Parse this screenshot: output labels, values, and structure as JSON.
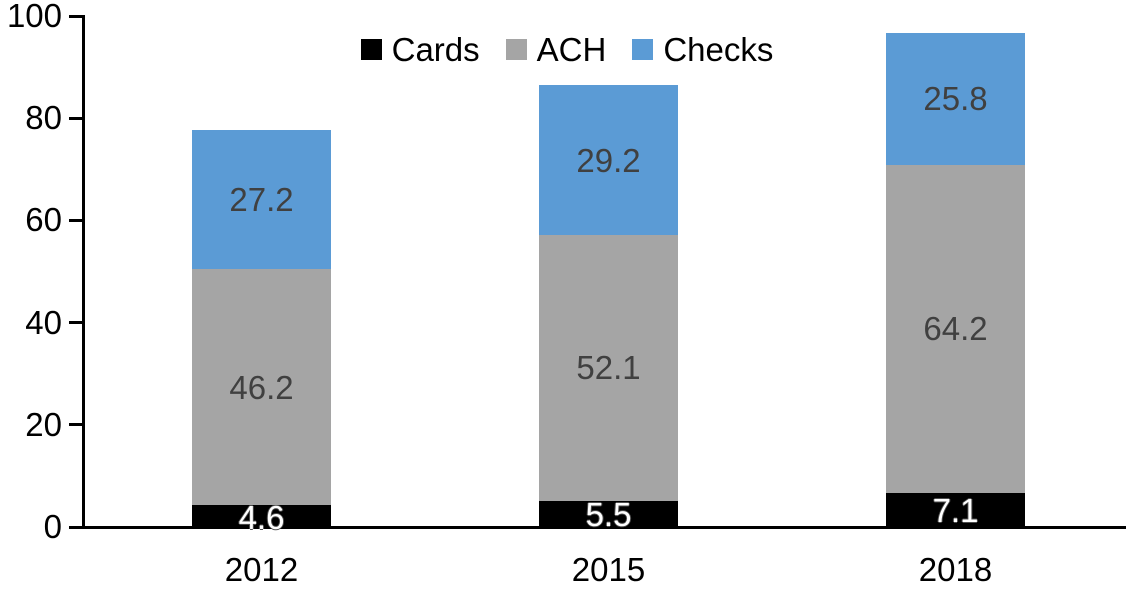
{
  "chart_data": {
    "type": "bar",
    "stacked": true,
    "title": "",
    "xlabel": "",
    "ylabel": "",
    "categories": [
      "2012",
      "2015",
      "2018"
    ],
    "series": [
      {
        "name": "Cards",
        "values": [
          4.6,
          5.5,
          7.1
        ],
        "color": "#000000",
        "label_color": "#ffffff"
      },
      {
        "name": "ACH",
        "values": [
          46.2,
          52.1,
          64.2
        ],
        "color": "#A5A5A5",
        "label_color": "#404040"
      },
      {
        "name": "Checks",
        "values": [
          27.2,
          29.2,
          25.8
        ],
        "color": "#5B9BD5",
        "label_color": "#404040"
      }
    ],
    "totals": [
      78.0,
      86.8,
      97.1
    ],
    "ylim": [
      0,
      100
    ],
    "yticks": [
      0,
      20,
      40,
      60,
      80,
      100
    ],
    "grid": false,
    "legend_position": "top-center",
    "legend_entries": [
      "Cards",
      "ACH",
      "Checks"
    ],
    "axis_color": "#000000",
    "background_color": "#ffffff"
  }
}
